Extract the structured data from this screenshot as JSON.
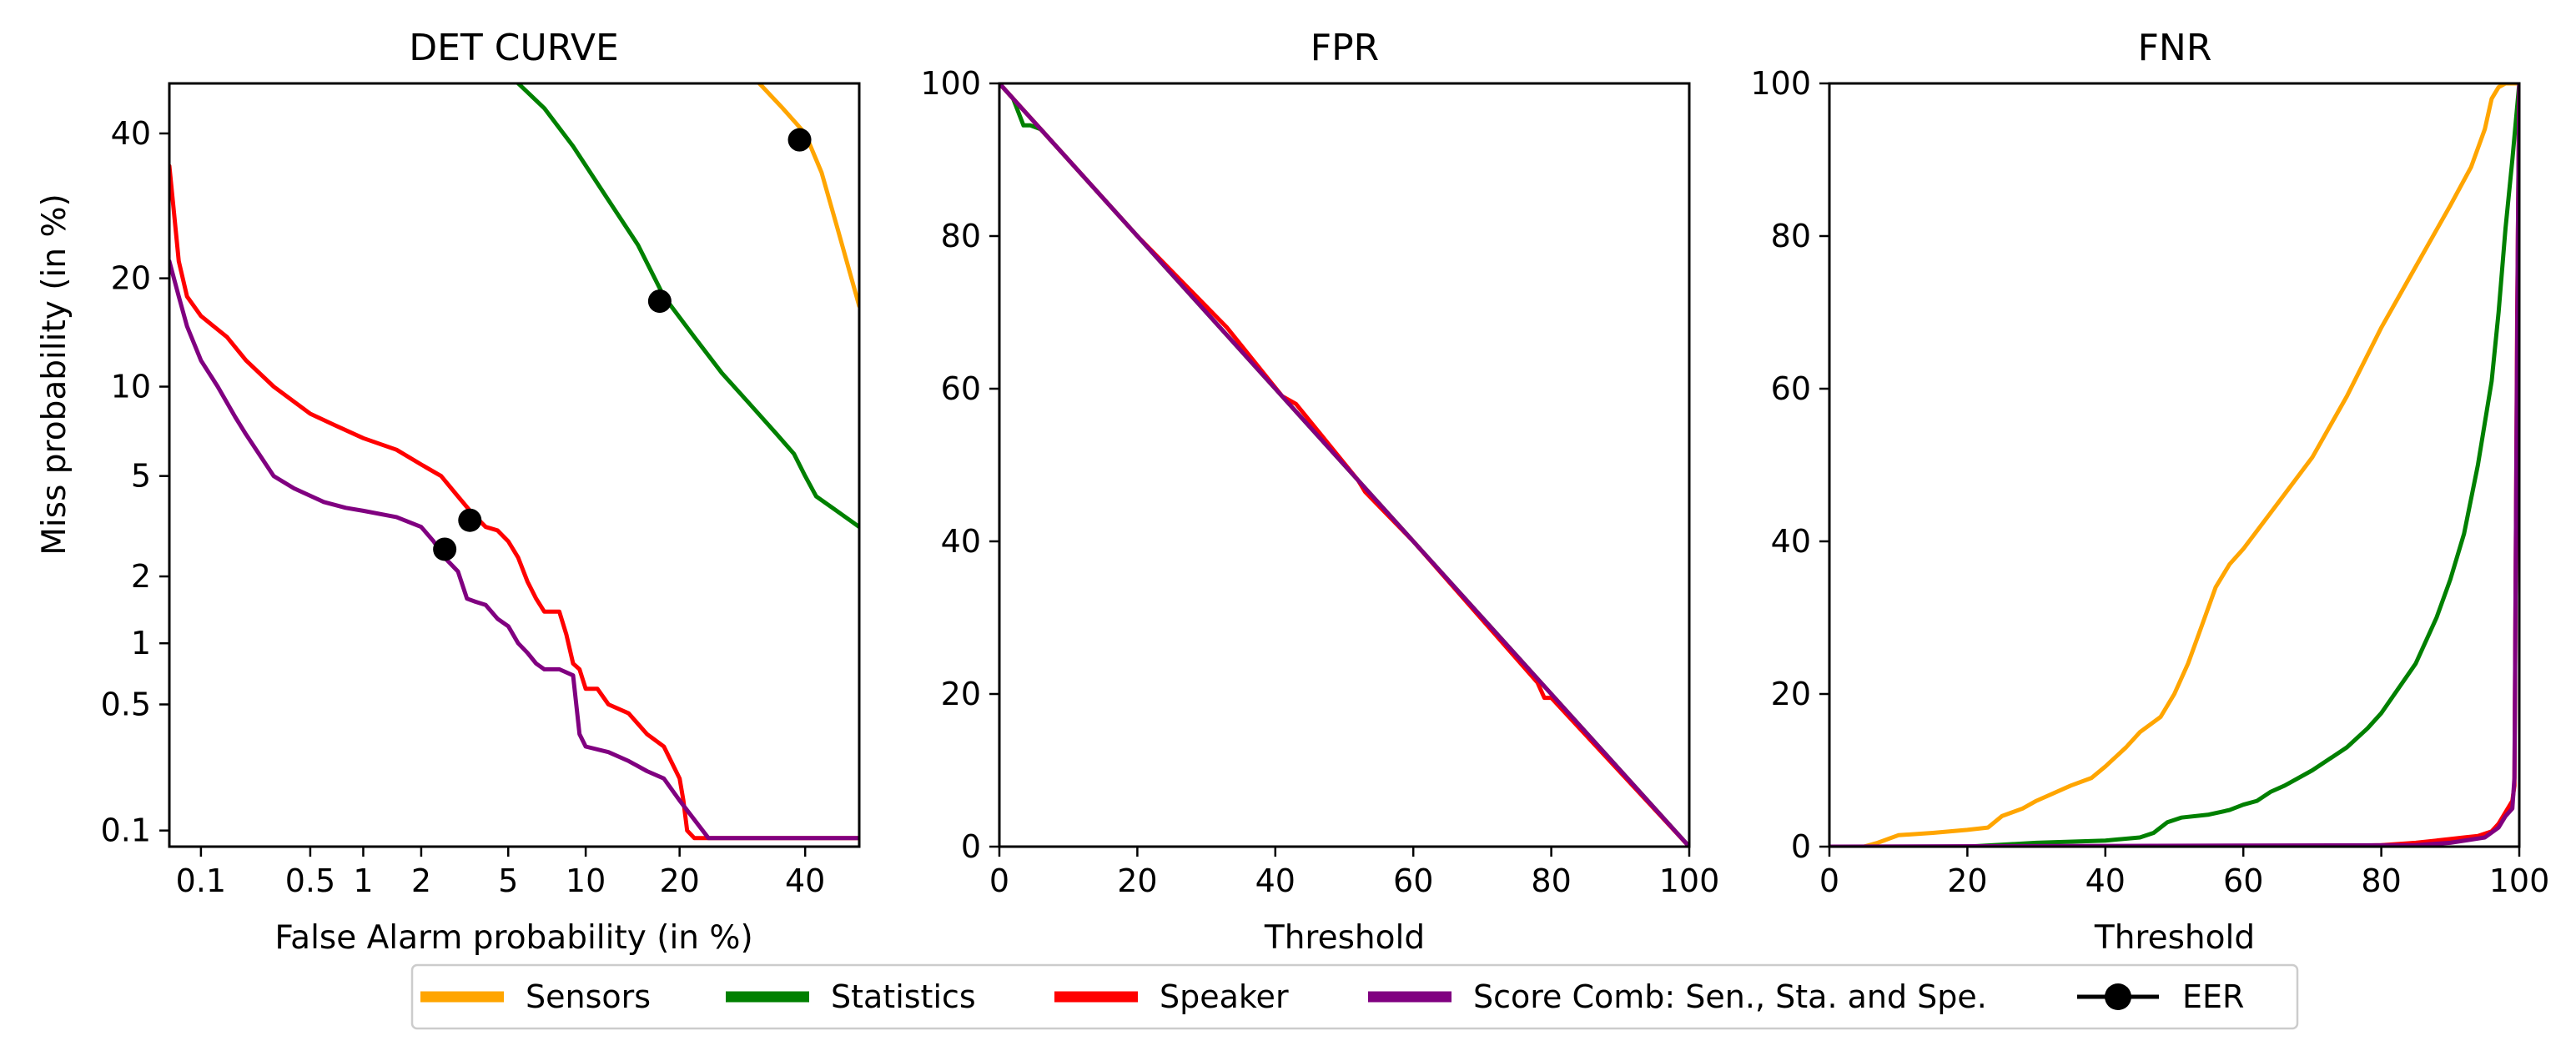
{
  "colors": {
    "sensors": "#ffa500",
    "statistics": "#008000",
    "speaker": "#ff0000",
    "scorecomb": "#800080",
    "eer": "#000000"
  },
  "legend": {
    "items": [
      {
        "key": "sensors",
        "label": "Sensors",
        "type": "line"
      },
      {
        "key": "statistics",
        "label": "Statistics",
        "type": "line"
      },
      {
        "key": "speaker",
        "label": "Speaker",
        "type": "line"
      },
      {
        "key": "scorecomb",
        "label": "Score Comb: Sen., Sta. and Spe.",
        "type": "line"
      },
      {
        "key": "eer",
        "label": "EER",
        "type": "marker"
      }
    ]
  },
  "chart_data": [
    {
      "id": "det",
      "type": "line",
      "title": "DET CURVE",
      "xlabel": "False Alarm probability (in %)",
      "ylabel": "Miss probability (in %)",
      "xscale": "probit",
      "yscale": "probit",
      "xlim": [
        0.06,
        50
      ],
      "ylim": [
        0.08,
        48
      ],
      "xticks": [
        0.1,
        0.5,
        1,
        2,
        5,
        10,
        20,
        40
      ],
      "xtick_labels": [
        "0.1",
        "0.5",
        "1",
        "2",
        "5",
        "10",
        "20",
        "40"
      ],
      "yticks": [
        0.1,
        0.5,
        1,
        2,
        5,
        10,
        20,
        40
      ],
      "ytick_labels": [
        "0.1",
        "0.5",
        "1",
        "2",
        "5",
        "10",
        "20",
        "40"
      ],
      "series": [
        {
          "name": "Sensors",
          "key": "sensors",
          "x": [
            32,
            36,
            40,
            43,
            46,
            50
          ],
          "y": [
            48,
            44,
            40,
            34,
            26,
            17
          ]
        },
        {
          "name": "Statistics",
          "key": "statistics",
          "x": [
            5.5,
            7,
            9,
            12,
            15,
            18,
            22,
            26,
            30,
            35,
            38,
            40,
            42,
            45,
            50
          ],
          "y": [
            48,
            44,
            38,
            30,
            24,
            18,
            14,
            11,
            9,
            7,
            6,
            5,
            4.2,
            3.8,
            3.2
          ]
        },
        {
          "name": "Speaker",
          "key": "speaker",
          "x": [
            0.06,
            0.065,
            0.07,
            0.08,
            0.1,
            0.15,
            0.2,
            0.3,
            0.5,
            0.7,
            1,
            1.5,
            2,
            2.5,
            3,
            3.5,
            4,
            4.5,
            5,
            5.5,
            6,
            6.5,
            7,
            8,
            8.5,
            9,
            9.5,
            10,
            11,
            12,
            14,
            16,
            18,
            20,
            20.5,
            21,
            22,
            24,
            30,
            40,
            50
          ],
          "y": [
            35,
            28,
            22,
            18,
            16,
            14,
            12,
            10,
            8.2,
            7.5,
            6.8,
            6.2,
            5.5,
            5,
            4.2,
            3.6,
            3.2,
            3.1,
            2.8,
            2.4,
            1.9,
            1.6,
            1.4,
            1.4,
            1.1,
            0.8,
            0.75,
            0.6,
            0.6,
            0.5,
            0.45,
            0.35,
            0.3,
            0.2,
            0.15,
            0.1,
            0.09,
            0.09,
            0.09,
            0.09,
            0.09
          ]
        },
        {
          "name": "Score Comb: Sen., Sta. and Spe.",
          "key": "scorecomb",
          "x": [
            0.06,
            0.07,
            0.08,
            0.1,
            0.13,
            0.17,
            0.2,
            0.3,
            0.4,
            0.6,
            0.8,
            1,
            1.5,
            2,
            2.3,
            2.6,
            3,
            3.3,
            3.6,
            4,
            4.5,
            5,
            5.5,
            6,
            6.5,
            7,
            8,
            9,
            9.5,
            10,
            12,
            14,
            16,
            18,
            20,
            24,
            30,
            40,
            50
          ],
          "y": [
            22,
            18,
            15,
            12,
            10,
            8,
            7,
            5,
            4.5,
            4,
            3.8,
            3.7,
            3.5,
            3.2,
            2.8,
            2.4,
            2.1,
            1.6,
            1.55,
            1.5,
            1.3,
            1.2,
            1,
            0.9,
            0.8,
            0.75,
            0.75,
            0.7,
            0.35,
            0.3,
            0.28,
            0.25,
            0.22,
            0.2,
            0.15,
            0.09,
            0.09,
            0.09,
            0.09
          ]
        }
      ],
      "eer_points": [
        {
          "x": 39,
          "y": 39
        },
        {
          "x": 17.5,
          "y": 17.5
        },
        {
          "x": 3.4,
          "y": 3.4
        },
        {
          "x": 2.6,
          "y": 2.6
        }
      ]
    },
    {
      "id": "fpr",
      "type": "line",
      "title": "FPR",
      "xlabel": "Threshold",
      "ylabel": "",
      "xscale": "linear",
      "yscale": "linear",
      "xlim": [
        0,
        100
      ],
      "ylim": [
        0,
        100
      ],
      "xticks": [
        0,
        20,
        40,
        60,
        80,
        100
      ],
      "xtick_labels": [
        "0",
        "20",
        "40",
        "60",
        "80",
        "100"
      ],
      "yticks": [
        0,
        20,
        40,
        60,
        80,
        100
      ],
      "ytick_labels": [
        "0",
        "20",
        "40",
        "60",
        "80",
        "100"
      ],
      "series": [
        {
          "name": "Sensors",
          "key": "sensors",
          "x": [
            0,
            20,
            40,
            60,
            80,
            100
          ],
          "y": [
            100,
            80,
            60,
            40,
            20,
            0
          ]
        },
        {
          "name": "Statistics",
          "key": "statistics",
          "x": [
            0,
            2,
            3.5,
            4.5,
            6,
            20,
            40,
            60,
            80,
            100
          ],
          "y": [
            100,
            98,
            94.5,
            94.5,
            94,
            80,
            60,
            40,
            20,
            0
          ]
        },
        {
          "name": "Speaker",
          "key": "speaker",
          "x": [
            0,
            20,
            33,
            41,
            43,
            52,
            53,
            60,
            78,
            79,
            80,
            100
          ],
          "y": [
            100,
            80,
            68,
            59,
            58,
            48,
            46.5,
            40,
            21.5,
            19.5,
            19.5,
            0
          ]
        },
        {
          "name": "Score Comb: Sen., Sta. and Spe.",
          "key": "scorecomb",
          "x": [
            0,
            20,
            40,
            60,
            80,
            100
          ],
          "y": [
            100,
            80,
            60,
            40,
            20,
            0
          ]
        }
      ]
    },
    {
      "id": "fnr",
      "type": "line",
      "title": "FNR",
      "xlabel": "Threshold",
      "ylabel": "",
      "xscale": "linear",
      "yscale": "linear",
      "xlim": [
        0,
        100
      ],
      "ylim": [
        0,
        100
      ],
      "xticks": [
        0,
        20,
        40,
        60,
        80,
        100
      ],
      "xtick_labels": [
        "0",
        "20",
        "40",
        "60",
        "80",
        "100"
      ],
      "yticks": [
        0,
        20,
        40,
        60,
        80,
        100
      ],
      "ytick_labels": [
        "0",
        "20",
        "40",
        "60",
        "80",
        "100"
      ],
      "series": [
        {
          "name": "Sensors",
          "key": "sensors",
          "x": [
            0,
            5,
            7,
            10,
            15,
            20,
            23,
            25,
            28,
            30,
            35,
            38,
            40,
            43,
            45,
            48,
            50,
            52,
            54,
            56,
            58,
            60,
            65,
            70,
            75,
            80,
            85,
            90,
            93,
            95,
            96,
            97,
            98,
            100
          ],
          "y": [
            0,
            0,
            0.5,
            1.5,
            1.8,
            2.2,
            2.5,
            4,
            5,
            6,
            8,
            9,
            10.5,
            13,
            15,
            17,
            20,
            24,
            29,
            34,
            37,
            39,
            45,
            51,
            59,
            68,
            76,
            84,
            89,
            94,
            98,
            99.5,
            100,
            100
          ]
        },
        {
          "name": "Statistics",
          "key": "statistics",
          "x": [
            0,
            20,
            30,
            40,
            45,
            47,
            49,
            51,
            55,
            58,
            60,
            62,
            64,
            66,
            70,
            75,
            78,
            80,
            85,
            88,
            90,
            92,
            94,
            96,
            97,
            98,
            99,
            100
          ],
          "y": [
            0,
            0,
            0.5,
            0.8,
            1.2,
            1.8,
            3.2,
            3.8,
            4.2,
            4.8,
            5.5,
            6,
            7.2,
            8,
            10,
            13,
            15.5,
            17.5,
            24,
            30,
            35,
            41,
            50,
            61,
            70,
            81,
            90,
            100
          ]
        },
        {
          "name": "Speaker",
          "key": "speaker",
          "x": [
            0,
            70,
            80,
            85,
            88,
            90,
            92,
            94,
            96,
            97,
            98,
            99,
            99.3,
            99.5,
            99.7,
            100
          ],
          "y": [
            0,
            0,
            0.2,
            0.5,
            0.8,
            1,
            1.2,
            1.4,
            2,
            3,
            4.5,
            6,
            8,
            40,
            70,
            100
          ]
        },
        {
          "name": "Score Comb: Sen., Sta. and Spe.",
          "key": "scorecomb",
          "x": [
            0,
            85,
            90,
            95,
            97,
            98,
            99,
            99.3,
            99.5,
            99.8,
            100
          ],
          "y": [
            0,
            0.2,
            0.5,
            1.2,
            2.5,
            4,
            5,
            9,
            40,
            80,
            100
          ]
        }
      ]
    }
  ]
}
